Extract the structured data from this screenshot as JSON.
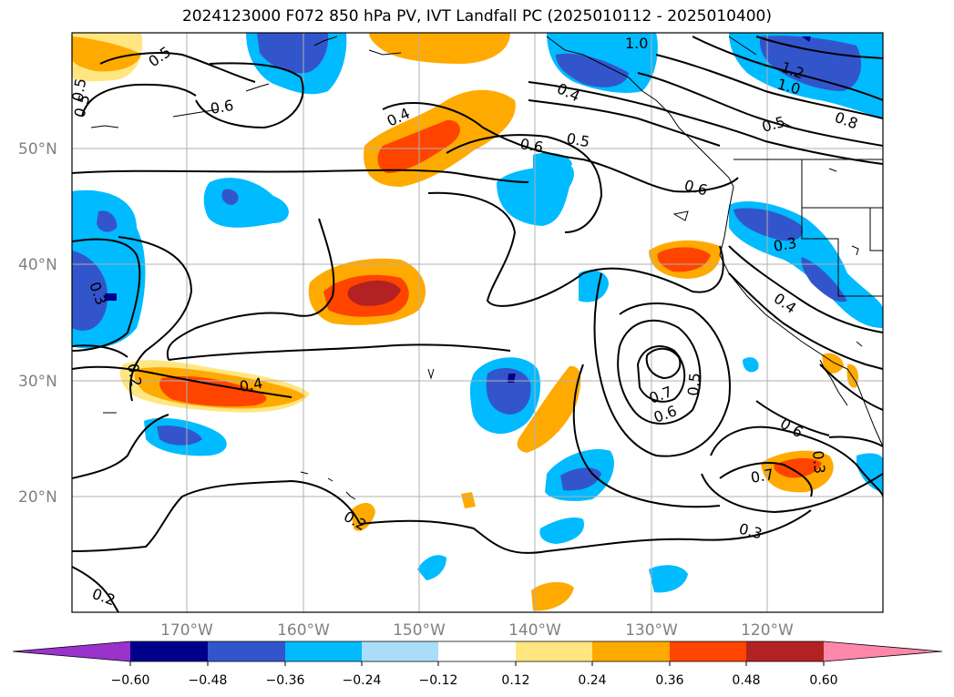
{
  "title": "2024123000 F072 850 hPa PV, IVT Landfall PC (2025010112 - 2025010400)",
  "lat_labels": [
    "50°N",
    "40°N",
    "30°N",
    "20°N"
  ],
  "lon_labels": [
    "170°W",
    "160°W",
    "150°W",
    "140°W",
    "130°W",
    "120°W"
  ],
  "contour_labels": [
    "1.0",
    "1.2",
    "1.0",
    "0.8",
    "0.5",
    "0.4",
    "0.6",
    "0.5",
    "0.4",
    "0.6",
    "0.5",
    "0.6",
    "0.5",
    "0.3",
    "0.4",
    "0.3",
    "0.2",
    "0.4",
    "0.7",
    "0.6",
    "0.5",
    "0.6",
    "0.7",
    "0.3",
    "0.3",
    "0.2",
    "0.2",
    "0.5"
  ],
  "colorbar": {
    "colors": [
      "#9933cc",
      "#00008b",
      "#3355cc",
      "#00bbff",
      "#aaddf8",
      "#ffffff",
      "#ffe680",
      "#ffaa00",
      "#ff4400",
      "#b22222",
      "#ff88aa"
    ],
    "tick_labels": [
      "−0.60",
      "−0.48",
      "−0.36",
      "−0.24",
      "−0.12",
      "0.12",
      "0.24",
      "0.36",
      "0.48",
      "0.60"
    ]
  }
}
